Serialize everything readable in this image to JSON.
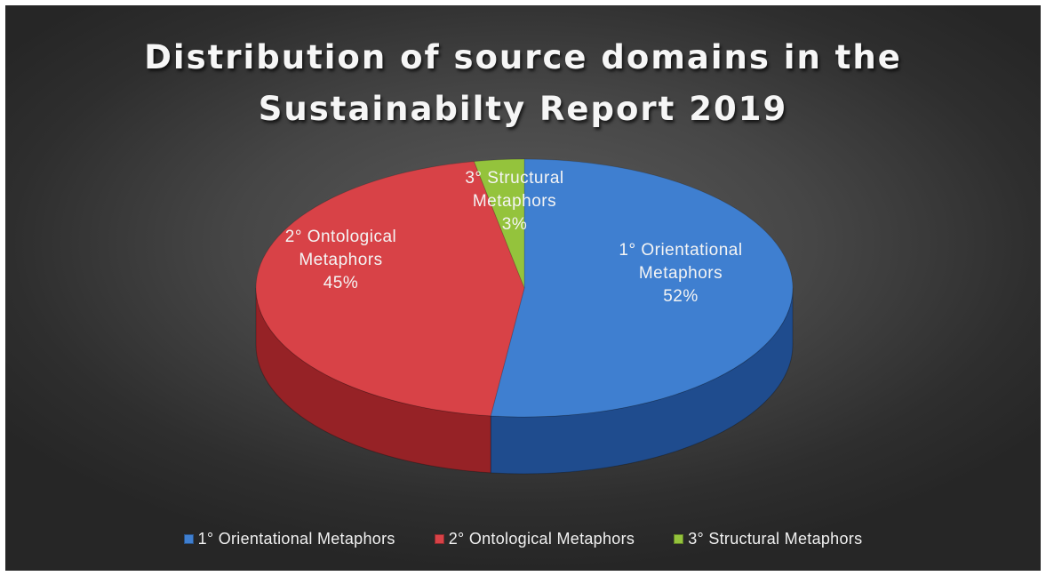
{
  "chart_data": {
    "type": "pie",
    "title": "Distribution of source domains in the Sustainabilty Report 2019",
    "title_lines": [
      "Distribution of source domains in the",
      "Sustainabilty Report 2019"
    ],
    "slices": [
      {
        "name": "1° Orientational Metaphors",
        "label_lines": [
          "1° Orientational",
          "Metaphors"
        ],
        "value": 52,
        "percent_label": "52%",
        "color": "#3f7fd0",
        "side_color": "#1f4c8e"
      },
      {
        "name": "2° Ontological Metaphors",
        "label_lines": [
          "2° Ontological",
          "Metaphors"
        ],
        "value": 45,
        "percent_label": "45%",
        "color": "#d84247",
        "side_color": "#962226"
      },
      {
        "name": "3° Structural Metaphors",
        "label_lines": [
          "3° Structural",
          "Metaphors"
        ],
        "value": 3,
        "percent_label": "3%",
        "color": "#94c33c",
        "side_color": "#5f8522"
      }
    ],
    "legend_position": "bottom",
    "style": "3d"
  }
}
